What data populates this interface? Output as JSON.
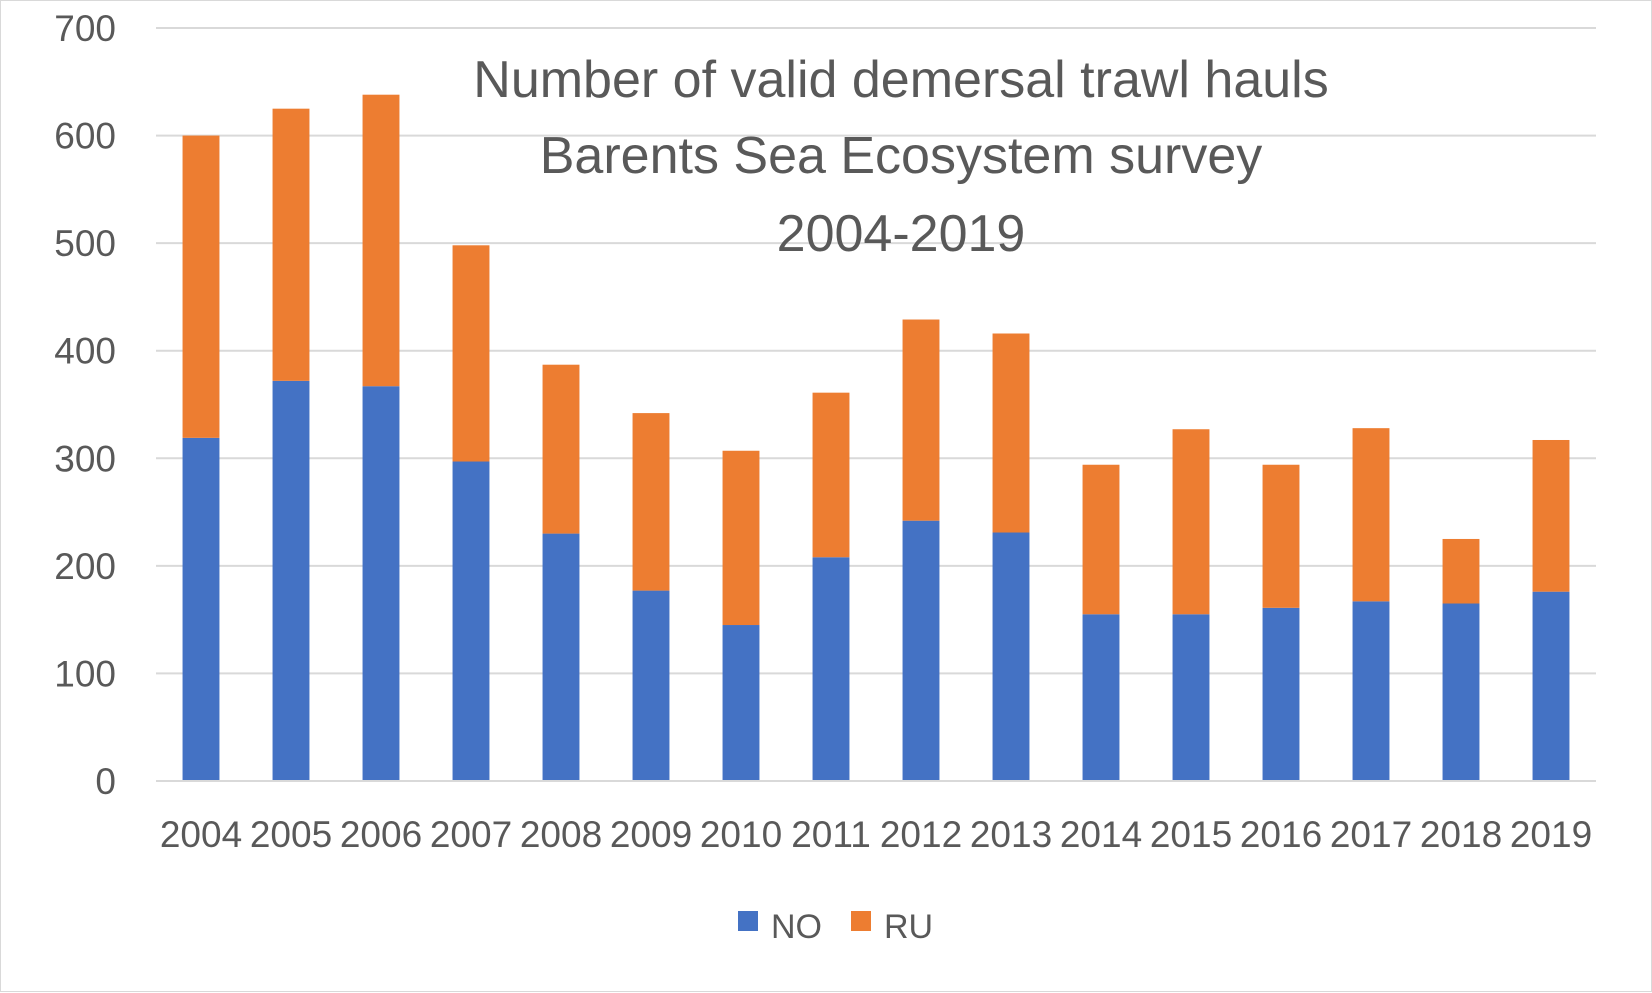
{
  "chart_data": {
    "type": "bar",
    "stacked": true,
    "title": [
      "Number of valid demersal trawl hauls",
      "Barents Sea Ecosystem survey",
      "2004-2019"
    ],
    "categories": [
      "2004",
      "2005",
      "2006",
      "2007",
      "2008",
      "2009",
      "2010",
      "2011",
      "2012",
      "2013",
      "2014",
      "2015",
      "2016",
      "2017",
      "2018",
      "2019"
    ],
    "series": [
      {
        "name": "NO",
        "color": "#4472C4",
        "values": [
          319,
          372,
          367,
          297,
          230,
          177,
          145,
          208,
          242,
          231,
          155,
          155,
          161,
          167,
          165,
          176
        ]
      },
      {
        "name": "RU",
        "color": "#ED7D31",
        "values": [
          281,
          253,
          271,
          201,
          157,
          165,
          162,
          153,
          187,
          185,
          139,
          172,
          133,
          161,
          60,
          141
        ]
      }
    ],
    "ylim": [
      0,
      700
    ],
    "yticks": [
      0,
      100,
      200,
      300,
      400,
      500,
      600,
      700
    ],
    "grid": true,
    "gridline_color": "#d9d9d9",
    "legend": "bottom"
  }
}
